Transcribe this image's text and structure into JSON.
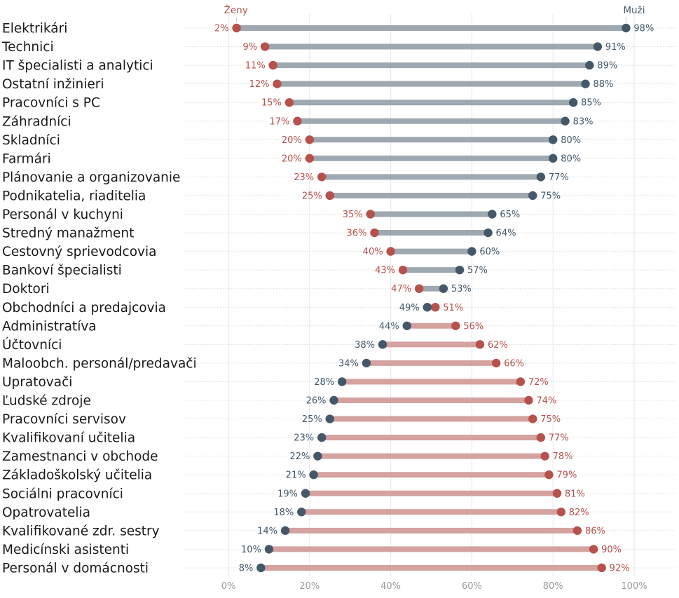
{
  "chart_data": {
    "type": "dumbbell",
    "series": [
      {
        "name": "Ženy",
        "color": "#b5524b",
        "values": [
          2,
          9,
          11,
          12,
          15,
          17,
          20,
          20,
          23,
          25,
          35,
          36,
          40,
          43,
          47,
          51,
          56,
          62,
          66,
          72,
          74,
          75,
          77,
          78,
          79,
          81,
          82,
          86,
          90,
          92
        ]
      },
      {
        "name": "Muži",
        "color": "#44586a",
        "values": [
          98,
          91,
          89,
          88,
          85,
          83,
          80,
          80,
          77,
          75,
          65,
          64,
          60,
          57,
          53,
          49,
          44,
          38,
          34,
          28,
          26,
          25,
          23,
          22,
          21,
          19,
          18,
          14,
          10,
          8
        ]
      }
    ],
    "categories": [
      "Elektrikári",
      "Technici",
      "IT špecialisti a analytici",
      "Ostatní inžinieri",
      "Pracovníci s PC",
      "Záhradníci",
      "Skladníci",
      "Farmári",
      "Plánovanie a organizovanie",
      "Podnikatelia, riaditelia",
      "Personál v kuchyni",
      "Stredný manažment",
      "Cestovný sprievodcovia",
      "Bankoví špecialisti",
      "Doktori",
      "Obchodníci a predajcovia",
      "Administratíva",
      "Účtovníci",
      "Maloobch. personál/predavači",
      "Upratovači",
      "Ľudské zdroje",
      "Pracovníci servisov",
      "Kvalifikovaní učitelia",
      "Zamestnanci v obchode",
      "Základoškolský učitelia",
      "Sociálni pracovníci",
      "Opatrovatelia",
      "Kvalifikované zdr. sestry",
      "Medicínski asistenti",
      "Personál v domácnosti"
    ],
    "x_ticks": [
      "0%",
      "20%",
      "40%",
      "60%",
      "80%",
      "100%"
    ],
    "xlim": [
      0,
      100
    ],
    "value_suffix": "%",
    "bar_colors": {
      "male_dominant": "#9ea8b0",
      "female_dominant": "#d4a29f"
    },
    "grid": true
  }
}
